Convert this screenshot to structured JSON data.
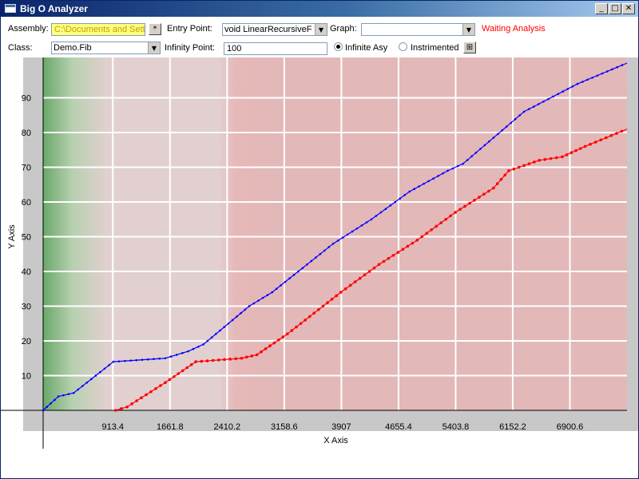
{
  "window": {
    "title": "Big O Analyzer",
    "minimize": "_",
    "maximize": "□",
    "close": "✕"
  },
  "toolbar": {
    "assembly_label": "Assembly:",
    "assembly_value": "C:\\Documents and Sett",
    "browse_button": "*",
    "entry_point_label": "Entry Point:",
    "entry_point_value": "void LinearRecursiveF",
    "graph_label": "Graph:",
    "graph_value": "",
    "status": "Waiting Analysis",
    "class_label": "Class:",
    "class_value": "Demo.Fib",
    "infinity_label": "Infinity Point:",
    "infinity_value": "100",
    "radio_infinite": "Infinite Asy",
    "radio_instrumented": "Instrimented",
    "run_button": "⊞"
  },
  "colors": {
    "status": "#ff0000",
    "series_blue": "#0000ff",
    "series_red": "#ff0000",
    "assembly_field_bg": "#ffff80"
  },
  "chart_data": {
    "type": "line",
    "xlabel": "X Axis",
    "ylabel": "Y Axis",
    "xlim": [
      0,
      7649
    ],
    "ylim": [
      0,
      100
    ],
    "x_ticks": [
      "913.4",
      "1661.8",
      "2410.2",
      "3158.6",
      "3907",
      "4655.4",
      "5403.8",
      "6152.2",
      "6900.6"
    ],
    "y_ticks": [
      "10",
      "20",
      "30",
      "40",
      "50",
      "60",
      "70",
      "80",
      "90"
    ],
    "grid": true,
    "series": [
      {
        "color": "#0000ff",
        "points": [
          [
            0,
            0
          ],
          [
            200,
            4
          ],
          [
            400,
            5
          ],
          [
            920,
            14
          ],
          [
            1600,
            15
          ],
          [
            1900,
            17
          ],
          [
            2100,
            19
          ],
          [
            2700,
            30
          ],
          [
            3000,
            34
          ],
          [
            3400,
            41
          ],
          [
            3800,
            48
          ],
          [
            4300,
            55
          ],
          [
            4800,
            63
          ],
          [
            5300,
            69
          ],
          [
            5500,
            71
          ],
          [
            6300,
            86
          ],
          [
            7000,
            94
          ],
          [
            7650,
            100
          ]
        ]
      },
      {
        "color": "#ff0000",
        "points": [
          [
            950,
            0
          ],
          [
            1100,
            1
          ],
          [
            1600,
            8
          ],
          [
            2000,
            14
          ],
          [
            2600,
            15
          ],
          [
            2800,
            16
          ],
          [
            3200,
            22
          ],
          [
            3900,
            34
          ],
          [
            4400,
            42
          ],
          [
            4900,
            49
          ],
          [
            5400,
            57
          ],
          [
            5900,
            64
          ],
          [
            6100,
            69
          ],
          [
            6500,
            72
          ],
          [
            6800,
            73
          ],
          [
            7100,
            76
          ],
          [
            7649,
            81
          ]
        ]
      }
    ]
  }
}
